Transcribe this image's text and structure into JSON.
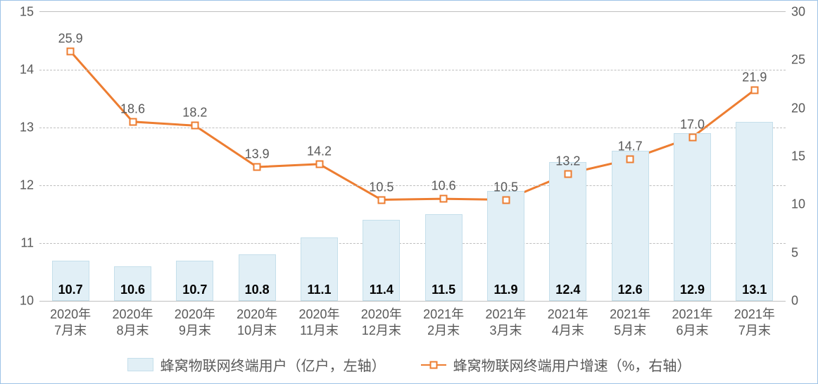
{
  "chart": {
    "type": "bar+line-dual-axis",
    "background_color": "#ffffff",
    "border_color": "#9dc3e6",
    "grid_color": "#bfbfbf",
    "categories": [
      "2020年\n7月末",
      "2020年\n8月末",
      "2020年\n9月末",
      "2020年\n10月末",
      "2020年\n11月末",
      "2020年\n12月末",
      "2021年\n2月末",
      "2021年\n3月末",
      "2021年\n4月末",
      "2021年\n5月末",
      "2021年\n6月末",
      "2021年\n7月末"
    ],
    "left_axis": {
      "min": 10,
      "max": 15,
      "tick_step": 1,
      "ticks": [
        10,
        11,
        12,
        13,
        14,
        15
      ]
    },
    "right_axis": {
      "min": 0,
      "max": 30,
      "tick_step": 5,
      "ticks": [
        0,
        5,
        10,
        15,
        20,
        25,
        30
      ]
    },
    "bars": {
      "values": [
        10.7,
        10.6,
        10.7,
        10.8,
        11.1,
        11.4,
        11.5,
        11.9,
        12.4,
        12.6,
        12.9,
        13.1
      ],
      "color": "#e1eff6",
      "border_color": "#c5dfeb",
      "width_ratio": 0.6,
      "label_fontsize": 18,
      "label_color": "#000000",
      "label_weight": "bold"
    },
    "line": {
      "values": [
        25.9,
        18.6,
        18.2,
        13.9,
        14.2,
        10.5,
        10.6,
        10.5,
        13.2,
        14.7,
        17.0,
        21.9
      ],
      "color": "#ed7d31",
      "width": 3,
      "marker_fill": "#ffffff",
      "marker_border": "#ed7d31",
      "marker_size": 11,
      "label_fontsize": 18,
      "label_color": "#595959"
    },
    "legend": {
      "bar_label": "蜂窝物联网终端用户（亿户，左轴）",
      "line_label": "蜂窝物联网终端用户增速（%，右轴）",
      "fontsize": 20,
      "text_color": "#595959"
    },
    "axis_label_fontsize": 18,
    "axis_label_color": "#595959",
    "x_label_fontsize": 18
  }
}
